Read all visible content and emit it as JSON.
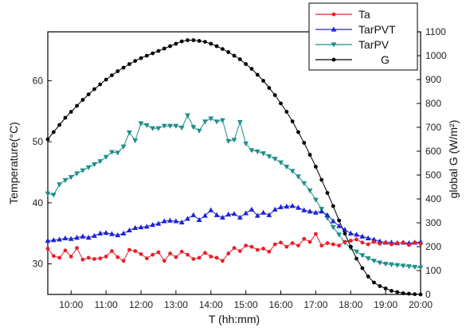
{
  "chart_data": {
    "type": "line",
    "xlabel": "T (hh:mm)",
    "ylabel_left": "Temperature(°C)",
    "ylabel_right": "global G  (W/m²)",
    "x_ticks": [
      "10:00",
      "11:00",
      "12:00",
      "13:00",
      "14:00",
      "15:00",
      "16:00",
      "17:00",
      "18:00",
      "19:00",
      "20:00"
    ],
    "y_left_ticks": [
      30,
      40,
      50,
      60
    ],
    "y_right_ticks": [
      0,
      100,
      200,
      300,
      400,
      500,
      600,
      700,
      800,
      900,
      1000,
      1100
    ],
    "x_range": [
      "09:20",
      "20:00"
    ],
    "y_left_range": [
      25,
      68
    ],
    "y_right_range": [
      0,
      1100
    ],
    "grid": false,
    "legend_position": "top-right",
    "colors": {
      "Ta": "#e8202a",
      "TarPVT": "#1c22d8",
      "TarPV": "#1c8f8a",
      "G": "#000000"
    },
    "series": [
      {
        "name": "Ta",
        "axis": "left",
        "x": [
          "09:20",
          "09:30",
          "09:40",
          "09:50",
          "10:00",
          "10:10",
          "10:20",
          "10:30",
          "10:40",
          "10:50",
          "11:00",
          "11:10",
          "11:20",
          "11:30",
          "11:40",
          "11:50",
          "12:00",
          "12:10",
          "12:20",
          "12:30",
          "12:40",
          "12:50",
          "13:00",
          "13:10",
          "13:20",
          "13:30",
          "13:40",
          "13:50",
          "14:00",
          "14:10",
          "14:20",
          "14:30",
          "14:40",
          "14:50",
          "15:00",
          "15:10",
          "15:20",
          "15:30",
          "15:40",
          "15:50",
          "16:00",
          "16:10",
          "16:20",
          "16:30",
          "16:40",
          "16:50",
          "17:00",
          "17:10",
          "17:20",
          "17:30",
          "17:40",
          "17:50",
          "18:00",
          "18:10",
          "18:20",
          "18:30",
          "18:40",
          "18:50",
          "19:00",
          "19:10",
          "19:20",
          "19:30",
          "19:40",
          "19:50",
          "20:00"
        ],
        "values": [
          32.5,
          31.3,
          31.0,
          32.2,
          31.2,
          32.6,
          30.7,
          31.0,
          30.8,
          30.9,
          31.2,
          32.1,
          31.1,
          30.5,
          32.3,
          32.1,
          31.6,
          30.9,
          31.5,
          31.9,
          30.5,
          31.7,
          31.1,
          32.0,
          31.5,
          30.8,
          31.0,
          31.8,
          31.2,
          31.0,
          30.5,
          31.7,
          32.6,
          32.1,
          33.0,
          32.8,
          32.3,
          32.5,
          32.0,
          33.2,
          33.5,
          32.8,
          33.4,
          33.0,
          34.1,
          33.6,
          34.9,
          33.0,
          33.4,
          33.2,
          33.0,
          33.6,
          33.8,
          34.0,
          33.5,
          33.2,
          33.6,
          33.3,
          33.5,
          33.2,
          33.4,
          33.5,
          33.1,
          33.5,
          33.3
        ]
      },
      {
        "name": "TarPVT",
        "axis": "left",
        "x": [
          "09:20",
          "09:30",
          "09:40",
          "09:50",
          "10:00",
          "10:10",
          "10:20",
          "10:30",
          "10:40",
          "10:50",
          "11:00",
          "11:10",
          "11:20",
          "11:30",
          "11:40",
          "11:50",
          "12:00",
          "12:10",
          "12:20",
          "12:30",
          "12:40",
          "12:50",
          "13:00",
          "13:10",
          "13:20",
          "13:30",
          "13:40",
          "13:50",
          "14:00",
          "14:10",
          "14:20",
          "14:30",
          "14:40",
          "14:50",
          "15:00",
          "15:10",
          "15:20",
          "15:30",
          "15:40",
          "15:50",
          "16:00",
          "16:10",
          "16:20",
          "16:30",
          "16:40",
          "16:50",
          "17:00",
          "17:10",
          "17:20",
          "17:30",
          "17:40",
          "17:50",
          "18:00",
          "18:10",
          "18:20",
          "18:30",
          "18:40",
          "18:50",
          "19:00",
          "19:10",
          "19:20",
          "19:30",
          "19:40",
          "19:50",
          "20:00"
        ],
        "values": [
          33.8,
          33.9,
          34.0,
          34.2,
          34.1,
          34.3,
          34.5,
          34.3,
          34.6,
          35.0,
          35.1,
          34.9,
          34.7,
          35.0,
          35.5,
          35.9,
          36.0,
          36.1,
          36.4,
          36.6,
          37.0,
          37.1,
          37.0,
          36.8,
          37.4,
          38.0,
          37.2,
          37.9,
          38.8,
          38.0,
          37.6,
          38.1,
          38.2,
          37.6,
          38.3,
          38.9,
          37.9,
          38.4,
          38.0,
          38.9,
          39.3,
          39.4,
          39.5,
          39.2,
          38.8,
          38.6,
          38.4,
          38.6,
          38.0,
          37.0,
          36.2,
          35.6,
          35.0,
          34.8,
          34.5,
          34.2,
          34.0,
          33.7,
          33.5,
          33.5,
          33.4,
          33.5,
          33.4,
          33.5,
          33.6
        ]
      },
      {
        "name": "TarPV",
        "axis": "left",
        "x": [
          "09:20",
          "09:30",
          "09:40",
          "09:50",
          "10:00",
          "10:10",
          "10:20",
          "10:30",
          "10:40",
          "10:50",
          "11:00",
          "11:10",
          "11:20",
          "11:30",
          "11:40",
          "11:50",
          "12:00",
          "12:10",
          "12:20",
          "12:30",
          "12:40",
          "12:50",
          "13:00",
          "13:10",
          "13:20",
          "13:30",
          "13:40",
          "13:50",
          "14:00",
          "14:10",
          "14:20",
          "14:30",
          "14:40",
          "14:50",
          "15:00",
          "15:10",
          "15:20",
          "15:30",
          "15:40",
          "15:50",
          "16:00",
          "16:10",
          "16:20",
          "16:30",
          "16:40",
          "16:50",
          "17:00",
          "17:10",
          "17:20",
          "17:30",
          "17:40",
          "17:50",
          "18:00",
          "18:10",
          "18:20",
          "18:30",
          "18:40",
          "18:50",
          "19:00",
          "19:10",
          "19:20",
          "19:30",
          "19:40",
          "19:50",
          "20:00"
        ],
        "values": [
          41.5,
          41.3,
          43.0,
          43.7,
          44.2,
          44.8,
          45.3,
          45.8,
          46.3,
          46.8,
          47.5,
          48.3,
          48.2,
          49.2,
          51.5,
          50.2,
          53.0,
          52.7,
          52.2,
          52.2,
          52.6,
          52.6,
          52.6,
          52.3,
          54.3,
          52.4,
          51.8,
          53.3,
          53.8,
          53.3,
          53.5,
          50.1,
          50.3,
          53.2,
          49.7,
          48.6,
          48.4,
          48.1,
          47.6,
          47.2,
          46.6,
          45.9,
          45.2,
          44.3,
          43.2,
          42.0,
          40.5,
          39.0,
          37.5,
          36.0,
          34.8,
          33.5,
          32.6,
          32.0,
          31.4,
          30.9,
          30.5,
          30.2,
          30.0,
          29.9,
          29.8,
          29.7,
          29.6,
          29.5,
          29.4
        ]
      },
      {
        "name": "G",
        "axis": "right",
        "x": [
          "09:20",
          "09:30",
          "09:40",
          "09:50",
          "10:00",
          "10:10",
          "10:20",
          "10:30",
          "10:40",
          "10:50",
          "11:00",
          "11:10",
          "11:20",
          "11:30",
          "11:40",
          "11:50",
          "12:00",
          "12:10",
          "12:20",
          "12:30",
          "12:40",
          "12:50",
          "13:00",
          "13:10",
          "13:20",
          "13:30",
          "13:40",
          "13:50",
          "14:00",
          "14:10",
          "14:20",
          "14:30",
          "14:40",
          "14:50",
          "15:00",
          "15:10",
          "15:20",
          "15:30",
          "15:40",
          "15:50",
          "16:00",
          "16:10",
          "16:20",
          "16:30",
          "16:40",
          "16:50",
          "17:00",
          "17:10",
          "17:20",
          "17:30",
          "17:40",
          "17:50",
          "18:00",
          "18:10",
          "18:20",
          "18:30",
          "18:40",
          "18:50",
          "19:00",
          "19:10",
          "19:20",
          "19:30",
          "19:40",
          "19:50",
          "20:00"
        ],
        "values": [
          650,
          680,
          710,
          740,
          765,
          790,
          815,
          838,
          860,
          880,
          900,
          918,
          935,
          950,
          965,
          978,
          990,
          1000,
          1010,
          1020,
          1030,
          1040,
          1050,
          1060,
          1065,
          1065,
          1062,
          1058,
          1050,
          1040,
          1028,
          1015,
          1000,
          985,
          965,
          945,
          920,
          895,
          865,
          835,
          800,
          765,
          725,
          680,
          635,
          585,
          535,
          480,
          425,
          370,
          310,
          255,
          200,
          150,
          110,
          75,
          50,
          35,
          25,
          15,
          10,
          5,
          3,
          1,
          0
        ]
      }
    ]
  }
}
